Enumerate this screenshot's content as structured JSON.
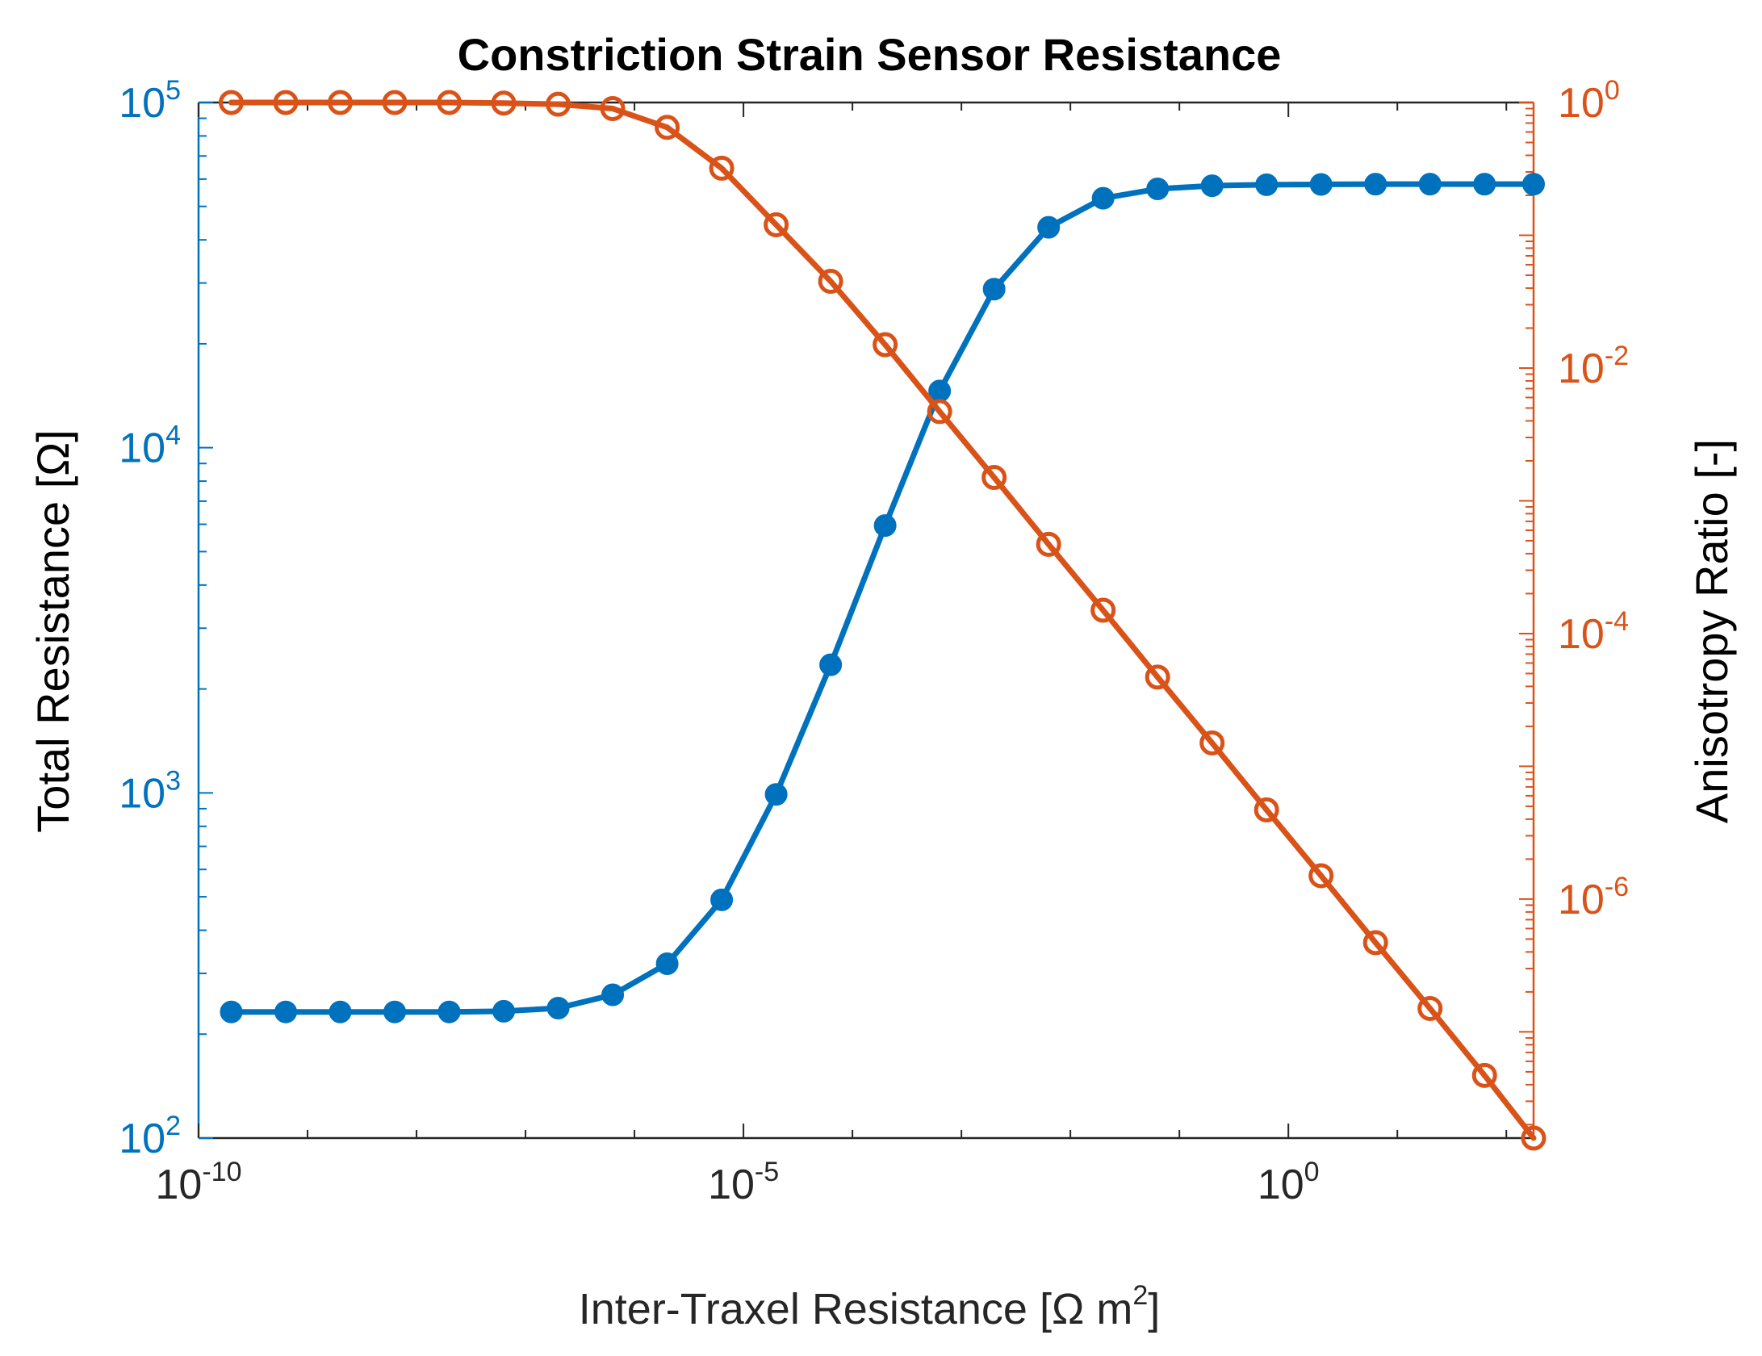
{
  "chart_data": {
    "type": "line",
    "title": "Constriction Strain Sensor Resistance",
    "xlabel": {
      "text": "Inter-Traxel Resistance [Ω m",
      "superscript": "2",
      "suffix": "]"
    },
    "x_scale": "log",
    "xlim_exp": [
      -10,
      2.25
    ],
    "x_ticks": [
      {
        "base": "10",
        "exp": "-10",
        "value_exp": -10
      },
      {
        "base": "10",
        "exp": "-5",
        "value_exp": -5
      },
      {
        "base": "10",
        "exp": "0",
        "value_exp": 0
      }
    ],
    "y_left": {
      "label": "Total Resistance [Ω]",
      "scale": "log",
      "ylim_exp": [
        2,
        5
      ],
      "color": "#0072BD",
      "ticks": [
        {
          "base": "10",
          "exp": "2",
          "value_exp": 2
        },
        {
          "base": "10",
          "exp": "3",
          "value_exp": 3
        },
        {
          "base": "10",
          "exp": "4",
          "value_exp": 4
        },
        {
          "base": "10",
          "exp": "5",
          "value_exp": 5
        }
      ]
    },
    "y_right": {
      "label": "Anisotropy Ratio [-]",
      "scale": "log",
      "ylim_exp": [
        -7.8,
        0
      ],
      "color": "#D95319",
      "ticks": [
        {
          "base": "10",
          "exp": "0",
          "value_exp": 0
        },
        {
          "base": "10",
          "exp": "-2",
          "value_exp": -2
        },
        {
          "base": "10",
          "exp": "-4",
          "value_exp": -4
        },
        {
          "base": "10",
          "exp": "-6",
          "value_exp": -6
        }
      ]
    },
    "x_exp": [
      -9.7,
      -9.2,
      -8.7,
      -8.2,
      -7.7,
      -7.2,
      -6.7,
      -6.2,
      -5.7,
      -5.2,
      -4.7,
      -4.2,
      -3.7,
      -3.2,
      -2.7,
      -2.2,
      -1.7,
      -1.2,
      -0.7,
      -0.2,
      0.3,
      0.8,
      1.3,
      1.8,
      2.3
    ],
    "series": [
      {
        "name": "Total Resistance",
        "axis": "left",
        "marker": "filled-circle",
        "color": "#0072BD",
        "values": [
          232,
          232,
          232,
          232,
          232,
          233,
          238,
          260,
          320,
          490,
          990,
          2350,
          5950,
          14600,
          28800,
          43500,
          52800,
          56200,
          57400,
          57800,
          57900,
          58000,
          58000,
          58000,
          58000
        ]
      },
      {
        "name": "Anisotropy Ratio",
        "axis": "right",
        "marker": "open-circle",
        "color": "#D95319",
        "values": [
          1.0,
          1.0,
          1.0,
          1.0,
          1.0,
          0.99,
          0.97,
          0.9,
          0.65,
          0.32,
          0.12,
          0.045,
          0.015,
          0.0047,
          0.0015,
          0.00047,
          0.00015,
          4.7e-05,
          1.5e-05,
          4.7e-06,
          1.5e-06,
          4.7e-07,
          1.5e-07,
          4.7e-08,
          1.5e-08
        ]
      }
    ],
    "grid": false,
    "legend": "none"
  }
}
